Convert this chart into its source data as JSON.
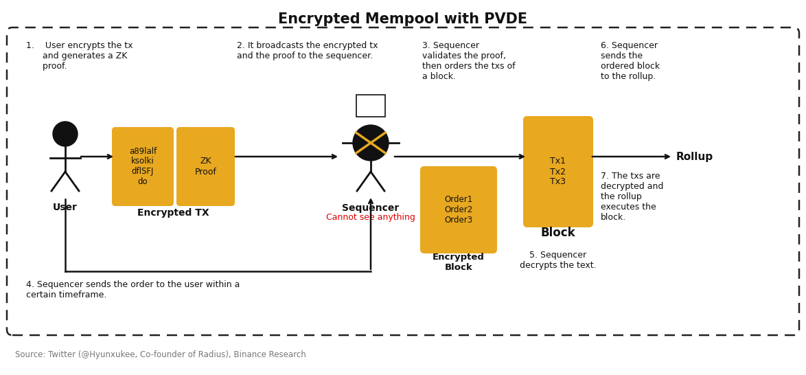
{
  "title": "Encrypted Mempool with PVDE",
  "bg": "#ffffff",
  "border_color": "#222222",
  "gold": "#E8A820",
  "white": "#ffffff",
  "black": "#111111",
  "red": "#dd0000",
  "gray": "#777777",
  "source": "Source: Twitter (@Hyunxukee, Co-founder of Radius), Binance Research",
  "step1": "1.    User encrypts the tx\n      and generates a ZK\n      proof.",
  "step2": "2. It broadcasts the encrypted tx\nand the proof to the sequencer.",
  "step3": "3. Sequencer\nvalidates the proof,\nthen orders the txs of\na block.",
  "step4": "4. Sequencer sends the order to the user within a\ncertain timeframe.",
  "step5": "5. Sequencer\ndecrypts the text.",
  "step6": "6. Sequencer\nsends the\nordered block\nto the rollup.",
  "step7": "7. The txs are\ndecrypted and\nthe rollup\nexecutes the\nblock.",
  "box1_text": "a89lalf\nksolki\ndflSFJ\ndo",
  "box2_text": "ZK\nProof",
  "enc_tx_label": "Encrypted TX",
  "seq_label": "Sequencer",
  "cannot_see": "Cannot see anything",
  "enc_block_text": "Order1\nOrder2\nOrder3",
  "enc_block_label": "Encrypted\nBlock",
  "block_text": "Tx1\nTx2\nTx3",
  "block_label": "Block",
  "rollup": "Rollup",
  "user_label": "User"
}
